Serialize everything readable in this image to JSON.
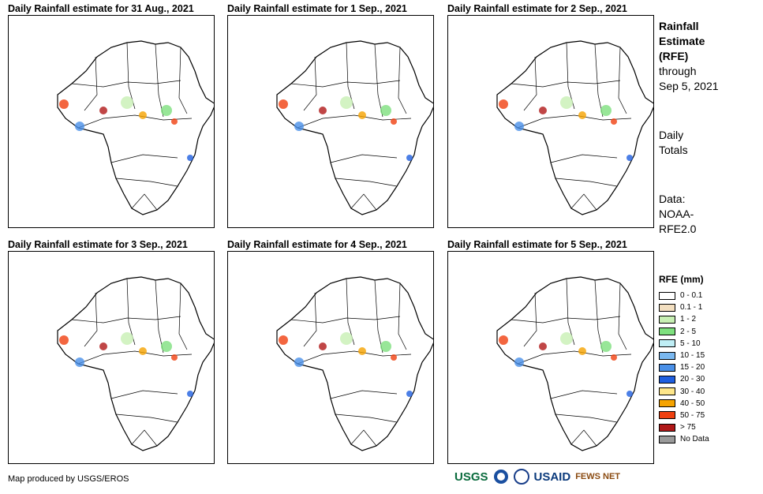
{
  "panels": [
    {
      "title": "Daily Rainfall estimate for 31 Aug., 2021"
    },
    {
      "title": "Daily Rainfall estimate for 1 Sep., 2021"
    },
    {
      "title": "Daily Rainfall estimate for 2 Sep., 2021"
    },
    {
      "title": "Daily Rainfall estimate for 3 Sep., 2021"
    },
    {
      "title": "Daily Rainfall estimate for 4 Sep., 2021"
    },
    {
      "title": "Daily Rainfall estimate for 5 Sep., 2021"
    }
  ],
  "side": {
    "title_line1": "Rainfall",
    "title_line2": "Estimate",
    "title_line3": "(RFE)",
    "through": "through",
    "date": "Sep 5, 2021",
    "daily": "Daily",
    "totals": "Totals",
    "data_label": "Data:",
    "data_src1": "NOAA-",
    "data_src2": "RFE2.0"
  },
  "legend": {
    "title": "RFE (mm)",
    "items": [
      {
        "label": "0 - 0.1",
        "color": "#ffffff"
      },
      {
        "label": "0.1 - 1",
        "color": "#f3dfc0"
      },
      {
        "label": "1 - 2",
        "color": "#c8f0b4"
      },
      {
        "label": "2 - 5",
        "color": "#7ee07e"
      },
      {
        "label": "5 - 10",
        "color": "#bfeef5"
      },
      {
        "label": "10 - 15",
        "color": "#7ab8f0"
      },
      {
        "label": "15 - 20",
        "color": "#4a90e8"
      },
      {
        "label": "20 - 30",
        "color": "#1f5fe0"
      },
      {
        "label": "30 - 40",
        "color": "#fde68a"
      },
      {
        "label": "40 - 50",
        "color": "#f5a300"
      },
      {
        "label": "50 - 75",
        "color": "#f04010"
      },
      {
        "label": "> 75",
        "color": "#b01818"
      },
      {
        "label": "No Data",
        "color": "#9a9a9a"
      }
    ]
  },
  "footer": {
    "credit": "Map produced by USGS/EROS"
  },
  "logos": {
    "usgs": "USGS",
    "usaid": "USAID",
    "fews": "FEWS NET"
  }
}
